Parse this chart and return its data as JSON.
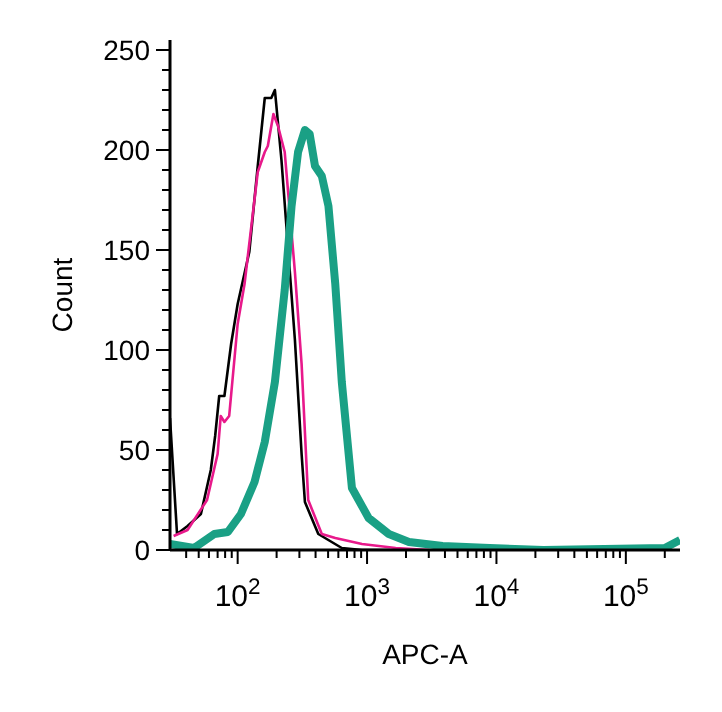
{
  "chart_data": {
    "type": "line",
    "xlabel": "APC-A",
    "ylabel": "Count",
    "log": "x",
    "xlim": [
      30,
      262144
    ],
    "ylim": [
      0,
      255
    ],
    "xticks": [
      {
        "value": 40,
        "label": null
      },
      {
        "value": 50,
        "label": null
      },
      {
        "value": 60,
        "label": null
      },
      {
        "value": 70,
        "label": null
      },
      {
        "value": 80,
        "label": null
      },
      {
        "value": 90,
        "label": null
      },
      {
        "value": 100,
        "label": "10$^{2}$"
      },
      {
        "value": 200,
        "label": null
      },
      {
        "value": 300,
        "label": null
      },
      {
        "value": 400,
        "label": null
      },
      {
        "value": 500,
        "label": null
      },
      {
        "value": 600,
        "label": null
      },
      {
        "value": 700,
        "label": null
      },
      {
        "value": 800,
        "label": null
      },
      {
        "value": 900,
        "label": null
      },
      {
        "value": 1000,
        "label": "10$^{3}$"
      },
      {
        "value": 2000,
        "label": null
      },
      {
        "value": 3000,
        "label": null
      },
      {
        "value": 4000,
        "label": null
      },
      {
        "value": 5000,
        "label": null
      },
      {
        "value": 6000,
        "label": null
      },
      {
        "value": 7000,
        "label": null
      },
      {
        "value": 8000,
        "label": null
      },
      {
        "value": 9000,
        "label": null
      },
      {
        "value": 10000,
        "label": "10$^{4}$"
      },
      {
        "value": 20000,
        "label": null
      },
      {
        "value": 30000,
        "label": null
      },
      {
        "value": 40000,
        "label": null
      },
      {
        "value": 50000,
        "label": null
      },
      {
        "value": 60000,
        "label": null
      },
      {
        "value": 70000,
        "label": null
      },
      {
        "value": 80000,
        "label": null
      },
      {
        "value": 90000,
        "label": null
      },
      {
        "value": 100000,
        "label": "10$^{5}$"
      },
      {
        "value": 200000,
        "label": null
      }
    ],
    "yticks": [
      0,
      {
        "value": 10,
        "label": null
      },
      {
        "value": 20,
        "label": null
      },
      {
        "value": 30,
        "label": null
      },
      {
        "value": 40,
        "label": null
      },
      50,
      {
        "value": 60,
        "label": null
      },
      {
        "value": 70,
        "label": null
      },
      {
        "value": 80,
        "label": null
      },
      {
        "value": 90,
        "label": null
      },
      100,
      {
        "value": 110,
        "label": null
      },
      {
        "value": 120,
        "label": null
      },
      {
        "value": 130,
        "label": null
      },
      {
        "value": 140,
        "label": null
      },
      150,
      {
        "value": 160,
        "label": null
      },
      {
        "value": 170,
        "label": null
      },
      {
        "value": 180,
        "label": null
      },
      {
        "value": 190,
        "label": null
      },
      200,
      {
        "value": 210,
        "label": null
      },
      {
        "value": 220,
        "label": null
      },
      {
        "value": 230,
        "label": null
      },
      {
        "value": 240,
        "label": null
      },
      250
    ],
    "series": [
      {
        "color": "#000000",
        "x": [
          30,
          34,
          41,
          52,
          62,
          67,
          72,
          79,
          89,
          100,
          123,
          143,
          162,
          182,
          194,
          218,
          277,
          312,
          331,
          420,
          638,
          914,
          1500
        ],
        "values": [
          66,
          8,
          12,
          18,
          40,
          57,
          77,
          77,
          103,
          123,
          149,
          192,
          226,
          226,
          230,
          195,
          105,
          48,
          24,
          8,
          1,
          0,
          0
        ]
      },
      {
        "color": "#e8198b",
        "x": [
          32,
          41,
          58,
          70,
          74,
          79,
          86,
          100,
          113,
          143,
          162,
          171,
          189,
          205,
          231,
          277,
          312,
          351,
          447,
          568,
          914,
          1664,
          3020
        ],
        "values": [
          7,
          10,
          25,
          48,
          67,
          64,
          67,
          113,
          133,
          189,
          199,
          202,
          218,
          212,
          199,
          139,
          93,
          25,
          8,
          6,
          3,
          1,
          0
        ]
      },
      {
        "color": "#1aa085",
        "x": [
          30,
          46,
          66,
          84,
          106,
          135,
          162,
          194,
          231,
          261,
          293,
          331,
          360,
          396,
          447,
          503,
          568,
          638,
          764,
          1028,
          1472,
          2108,
          3837,
          8850,
          23070,
          200000,
          262144
        ],
        "values": [
          3,
          1,
          8,
          9,
          18,
          34,
          54,
          84,
          130,
          172,
          199,
          210,
          208,
          192,
          187,
          172,
          133,
          84,
          31,
          16,
          8,
          4,
          2,
          1,
          0,
          1,
          5
        ]
      }
    ]
  }
}
